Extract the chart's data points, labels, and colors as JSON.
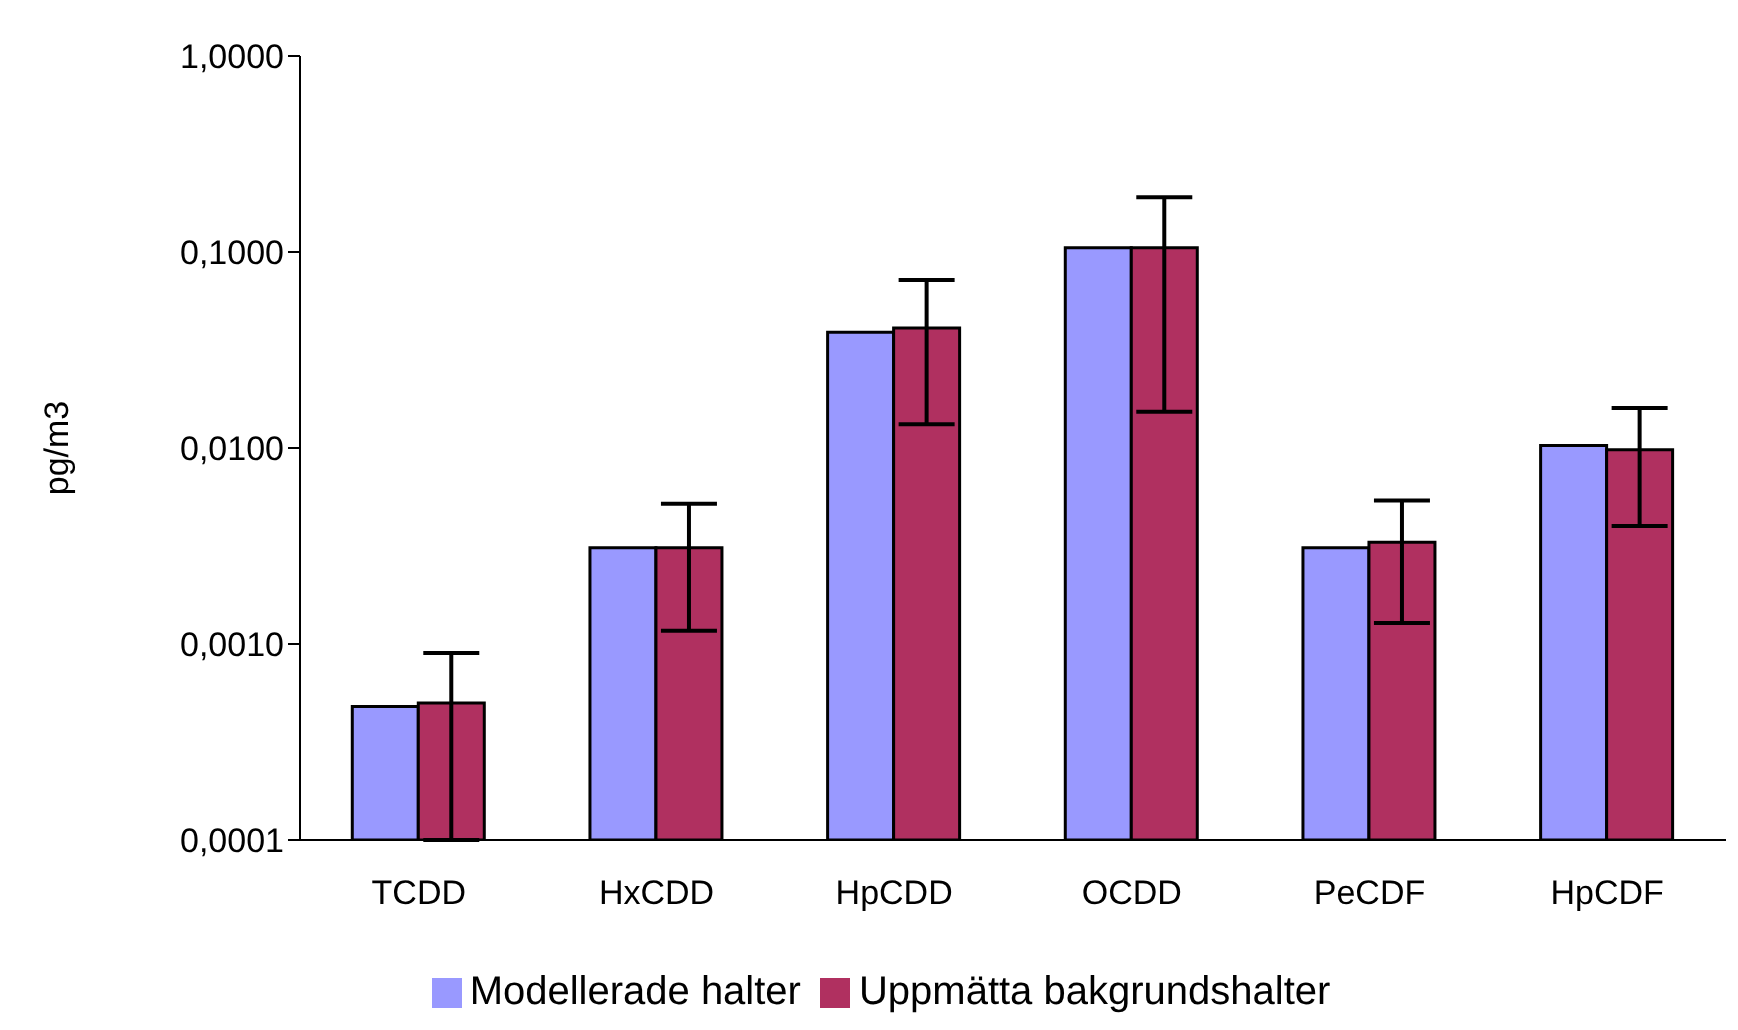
{
  "chart_data": {
    "type": "bar",
    "ylabel": "pg/m3",
    "log": true,
    "grid": false,
    "legend": "bottom",
    "categories": [
      "TCDD",
      "HxCDD",
      "HpCDD",
      "OCDD",
      "PeCDF",
      "HpCDF"
    ],
    "ylim": [
      0.0001,
      1
    ],
    "yticks": [
      {
        "value": 0.0001,
        "label": "0,0001"
      },
      {
        "value": 0.001,
        "label": "0,0010"
      },
      {
        "value": 0.01,
        "label": "0,0100"
      },
      {
        "value": 0.1,
        "label": "0,1000"
      },
      {
        "value": 1,
        "label": "1,0000"
      }
    ],
    "series": [
      {
        "name": "Modellerade halter",
        "color": "#9999ff",
        "values": [
          0.00048,
          0.0031,
          0.039,
          0.105,
          0.0031,
          0.0103
        ]
      },
      {
        "name": "Uppmätta bakgrundshalter",
        "color": "#b03060",
        "values": [
          0.0005,
          0.0031,
          0.041,
          0.105,
          0.0033,
          0.0098
        ],
        "errors": [
          [
            0.0001,
            0.0009
          ],
          [
            0.00117,
            0.0052
          ],
          [
            0.0132,
            0.072
          ],
          [
            0.0153,
            0.19
          ],
          [
            0.00128,
            0.0054
          ],
          [
            0.004,
            0.016
          ]
        ]
      }
    ]
  }
}
